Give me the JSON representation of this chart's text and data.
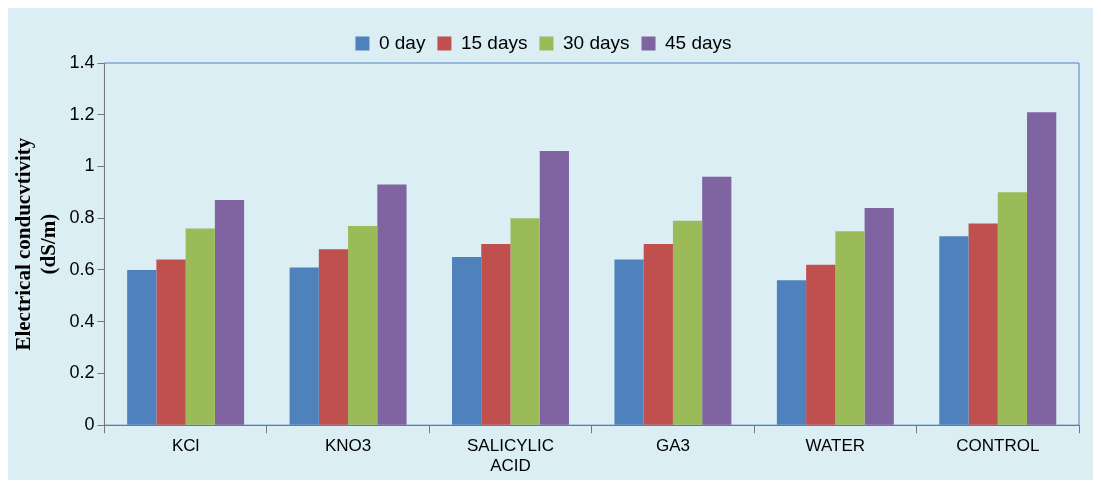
{
  "chart_data": {
    "type": "bar",
    "ylabel": "Electrical conducvtivity (dS/m)",
    "categories": [
      "KCl",
      "KNO3",
      "SALICYLIC ACID",
      "GA3",
      "WATER",
      "CONTROL"
    ],
    "series": [
      {
        "name": "0 day",
        "color": "#4f81bd",
        "values": [
          0.6,
          0.61,
          0.65,
          0.64,
          0.56,
          0.73
        ]
      },
      {
        "name": "15 days",
        "color": "#c0504d",
        "values": [
          0.64,
          0.68,
          0.7,
          0.7,
          0.62,
          0.78
        ]
      },
      {
        "name": "30 days",
        "color": "#9bbb59",
        "values": [
          0.76,
          0.77,
          0.8,
          0.79,
          0.75,
          0.9
        ]
      },
      {
        "name": "45 days",
        "color": "#8064a2",
        "values": [
          0.87,
          0.93,
          1.06,
          0.96,
          0.84,
          1.21
        ]
      }
    ],
    "ylim": [
      0,
      1.4
    ],
    "yticks": [
      0,
      0.2,
      0.4,
      0.6,
      0.8,
      1,
      1.2,
      1.4
    ],
    "grid": false,
    "legend": "top"
  }
}
